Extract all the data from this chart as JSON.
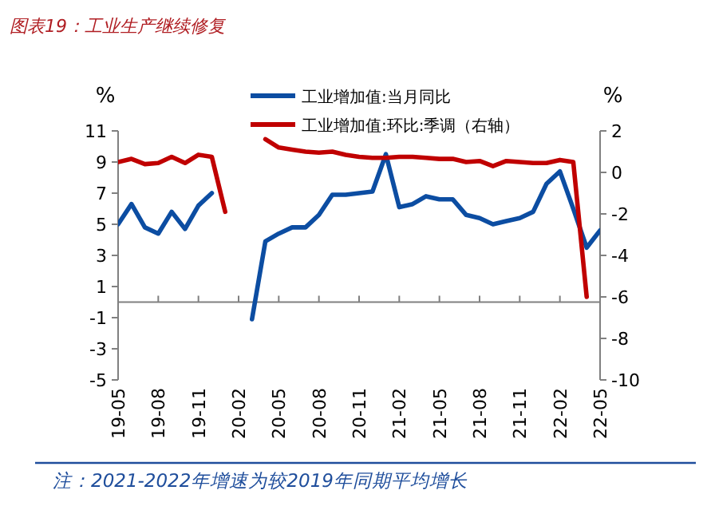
{
  "chart_data": {
    "type": "line",
    "title": "图表19：工业生产继续修复",
    "ylabel": "%",
    "y2label": "%",
    "annotations": [
      "注：2021-2022年增速为较2019年同期平均增长"
    ],
    "x": [
      "2019-05",
      "2019-06",
      "2019-07",
      "2019-08",
      "2019-09",
      "2019-10",
      "2019-11",
      "2019-12",
      "2020-01",
      "2020-02",
      "2020-03",
      "2020-04",
      "2020-05",
      "2020-06",
      "2020-07",
      "2020-08",
      "2020-09",
      "2020-10",
      "2020-11",
      "2020-12",
      "2021-01",
      "2021-02",
      "2021-03",
      "2021-04",
      "2021-05",
      "2021-06",
      "2021-07",
      "2021-08",
      "2021-09",
      "2021-10",
      "2021-11",
      "2021-12",
      "2022-01",
      "2022-02",
      "2022-03",
      "2022-04",
      "2022-05"
    ],
    "series": [
      {
        "name": "工业增加值:当月同比",
        "color": "#0c4da2",
        "values": [
          5.0,
          6.3,
          4.8,
          4.4,
          5.8,
          4.7,
          6.2,
          7.0,
          null,
          null,
          -1.1,
          3.9,
          4.4,
          4.8,
          4.8,
          5.6,
          6.9,
          6.9,
          7.0,
          7.1,
          9.5,
          6.1,
          6.3,
          6.8,
          6.6,
          6.6,
          5.6,
          5.4,
          5.0,
          5.2,
          5.4,
          5.8,
          7.6,
          8.4,
          6.0,
          3.5,
          4.6
        ]
      },
      {
        "name": "工业增加值:环比:季调（右轴）",
        "color": "#c00000",
        "axis": "y2",
        "values": [
          0.5,
          0.65,
          0.4,
          0.45,
          0.75,
          0.45,
          0.85,
          0.75,
          -1.9,
          null,
          null,
          1.6,
          1.2,
          1.1,
          1.0,
          0.95,
          1.0,
          0.85,
          0.75,
          0.7,
          0.7,
          0.75,
          0.75,
          0.7,
          0.65,
          0.65,
          0.5,
          0.55,
          0.3,
          0.55,
          0.5,
          0.45,
          0.45,
          0.6,
          0.5,
          -6.0,
          null
        ]
      }
    ],
    "xlim": [
      "2019-05",
      "2022-05"
    ],
    "xticks": [
      {
        "value": "2019-05",
        "label": "19-05"
      },
      {
        "value": "2019-08",
        "label": "19-08"
      },
      {
        "value": "2019-11",
        "label": "19-11"
      },
      {
        "value": "2020-02",
        "label": "20-02"
      },
      {
        "value": "2020-05",
        "label": "20-05"
      },
      {
        "value": "2020-08",
        "label": "20-08"
      },
      {
        "value": "2020-11",
        "label": "20-11"
      },
      {
        "value": "2021-02",
        "label": "21-02"
      },
      {
        "value": "2021-05",
        "label": "21-05"
      },
      {
        "value": "2021-08",
        "label": "21-08"
      },
      {
        "value": "2021-11",
        "label": "21-11"
      },
      {
        "value": "2022-02",
        "label": "22-02"
      },
      {
        "value": "2022-05",
        "label": "22-05"
      }
    ],
    "ylim": [
      -5,
      11
    ],
    "yticks": [
      -5,
      -3,
      -1,
      1,
      3,
      5,
      7,
      9,
      11
    ],
    "y2lim": [
      -10,
      2
    ],
    "y2ticks": [
      -10,
      -8,
      -6,
      -4,
      -2,
      0,
      2
    ],
    "legend": "top",
    "grid": false,
    "line_style": "solid"
  }
}
